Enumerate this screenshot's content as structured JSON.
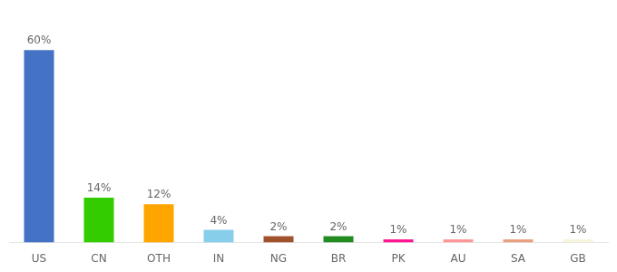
{
  "chart_data": {
    "type": "bar",
    "categories": [
      "US",
      "CN",
      "OTH",
      "IN",
      "NG",
      "BR",
      "PK",
      "AU",
      "SA",
      "GB"
    ],
    "values": [
      60,
      14,
      12,
      4,
      2,
      2,
      1,
      1,
      1,
      1
    ],
    "value_labels": [
      "60%",
      "14%",
      "12%",
      "4%",
      "2%",
      "2%",
      "1%",
      "1%",
      "1%",
      "1%"
    ],
    "colors": [
      "#4472C4",
      "#33CC00",
      "#FFA500",
      "#87CEEB",
      "#A0522D",
      "#228B22",
      "#FF1493",
      "#FF9999",
      "#E8A080",
      "#F5F5DC"
    ],
    "ylim": [
      0,
      70
    ],
    "data_labels": true,
    "tick_labels": "x",
    "grid": false
  }
}
